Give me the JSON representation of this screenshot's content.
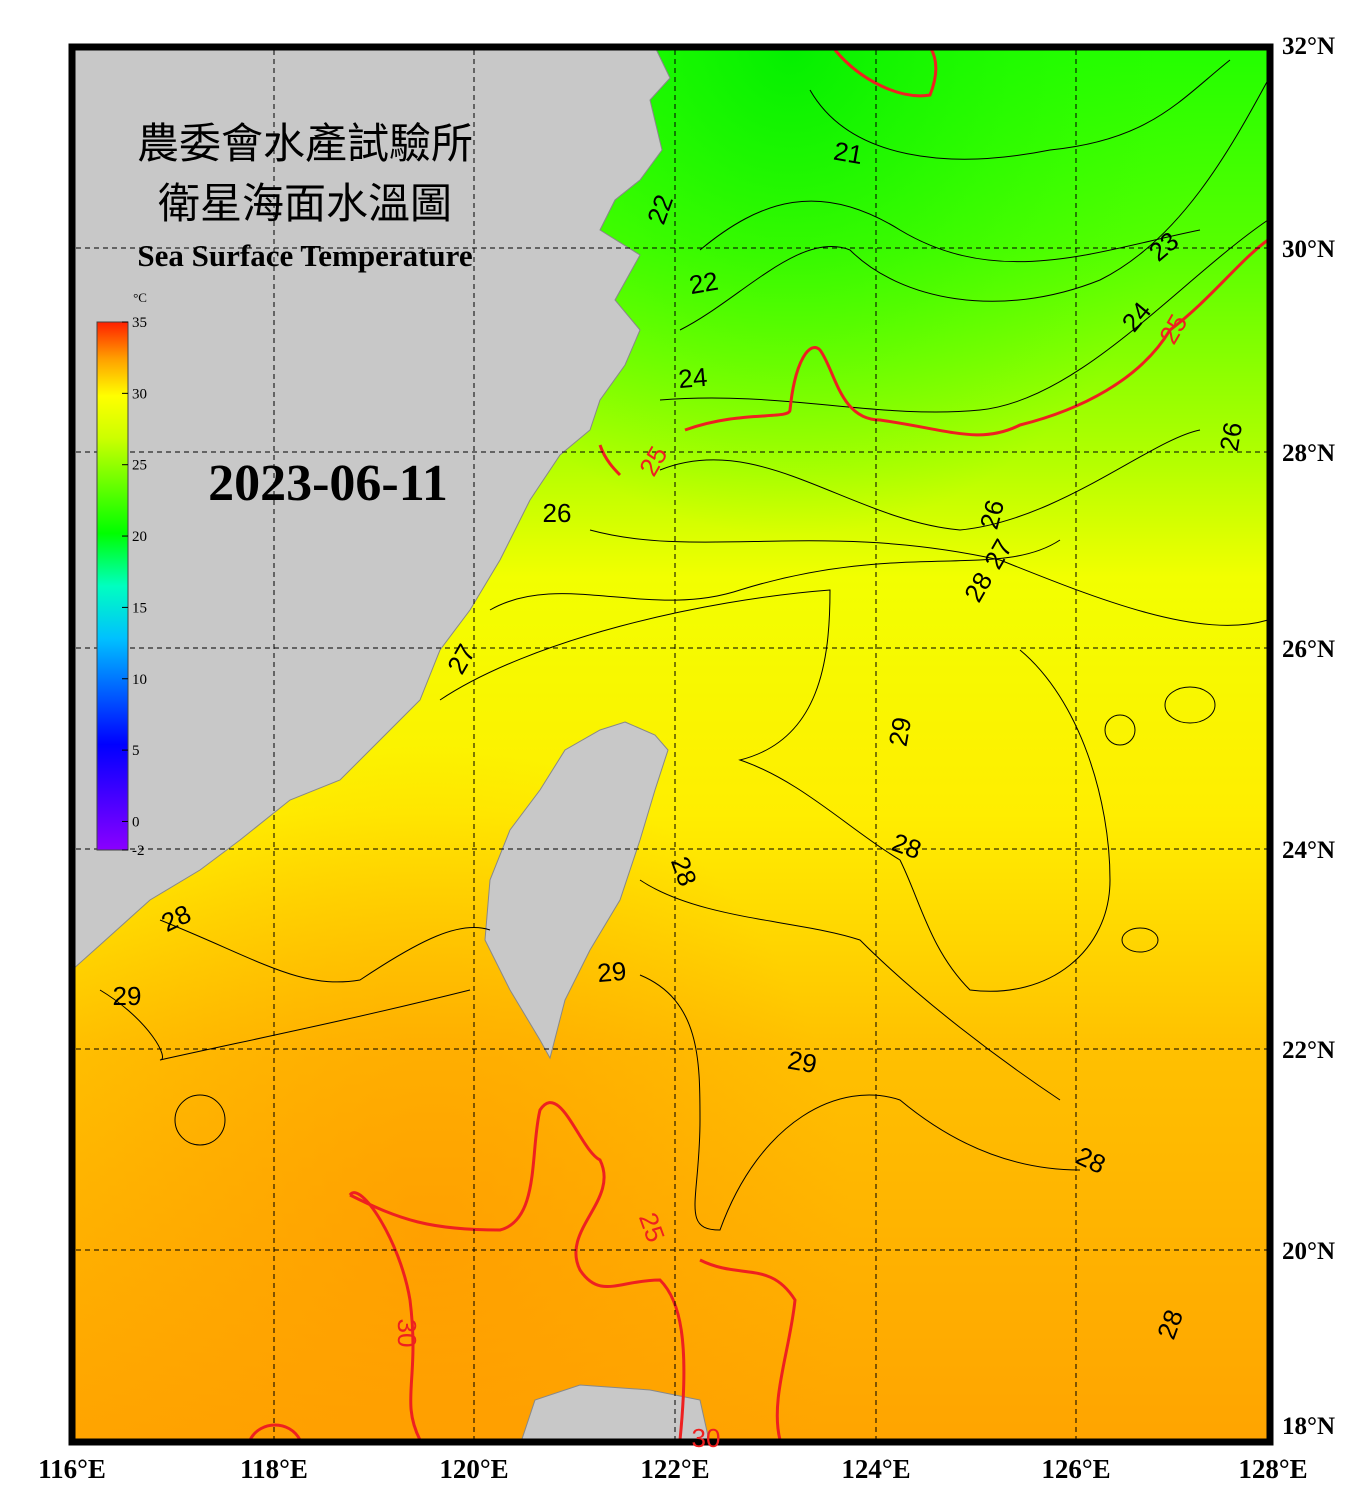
{
  "header": {
    "title_zh_1": "農委會水產試驗所",
    "title_zh_2": "衛星海面水溫圖",
    "title_en": "Sea Surface Temperature",
    "date": "2023-06-11"
  },
  "colorbar": {
    "unit": "°C",
    "range": [
      -2,
      35
    ],
    "ticks": [
      35,
      30,
      25,
      20,
      15,
      10,
      5,
      0,
      -2
    ]
  },
  "axes": {
    "lon_labels": [
      "116°E",
      "118°E",
      "120°E",
      "122°E",
      "124°E",
      "126°E",
      "128°E"
    ],
    "lat_labels": [
      "32°N",
      "30°N",
      "28°N",
      "26°N",
      "24°N",
      "22°N",
      "20°N",
      "18°N"
    ]
  },
  "contour_labels": [
    "21",
    "22",
    "22",
    "23",
    "24",
    "24",
    "25",
    "25",
    "25",
    "26",
    "26",
    "26",
    "27",
    "27",
    "28",
    "28",
    "28",
    "28",
    "28",
    "28",
    "29",
    "29",
    "29",
    "29",
    "30",
    "30"
  ]
}
